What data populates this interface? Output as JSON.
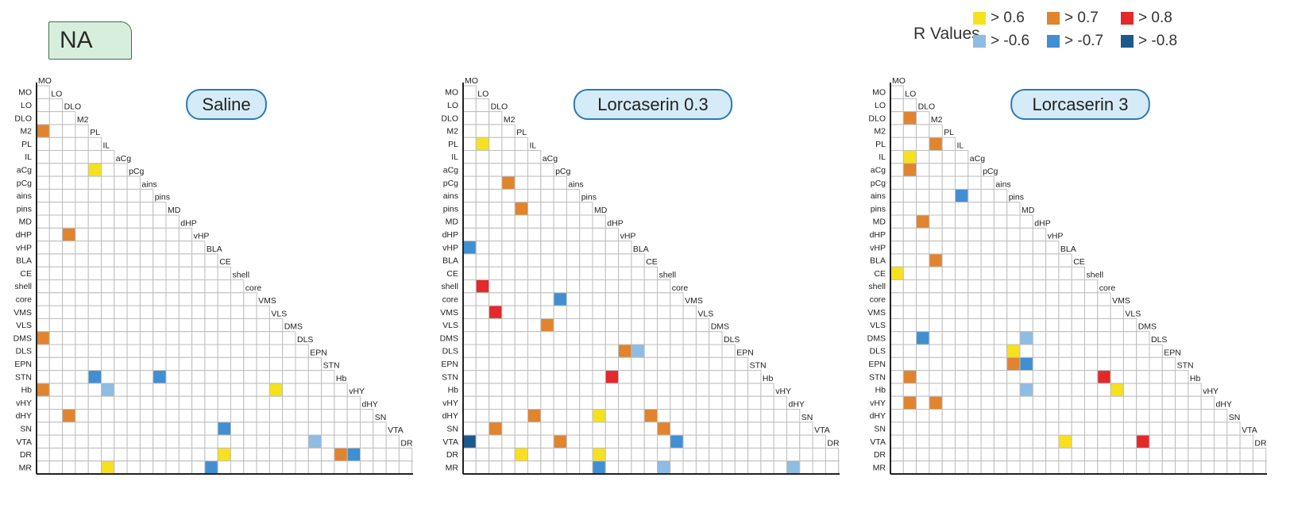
{
  "na_label": "NA",
  "legend": {
    "title": "R Values",
    "items": [
      {
        "label": "> 0.6",
        "color": "#f7e11e"
      },
      {
        "label": "> 0.7",
        "color": "#e0842e"
      },
      {
        "label": "> 0.8",
        "color": "#e4282c"
      },
      {
        "label": "> -0.6",
        "color": "#8ebce3"
      },
      {
        "label": "> -0.7",
        "color": "#3f8fd2"
      },
      {
        "label": "> -0.8",
        "color": "#1d5a8c"
      }
    ]
  },
  "chart_data": [
    {
      "type": "heatmap",
      "title": "Saline",
      "regions": [
        "MO",
        "LO",
        "DLO",
        "M2",
        "PL",
        "IL",
        "aCg",
        "pCg",
        "ains",
        "pins",
        "MD",
        "dHP",
        "vHP",
        "BLA",
        "CE",
        "shell",
        "core",
        "VMS",
        "VLS",
        "DMS",
        "DLS",
        "EPN",
        "STN",
        "Hb",
        "vHY",
        "dHY",
        "SN",
        "VTA",
        "DR",
        "MR"
      ],
      "cells": [
        {
          "row": "M2",
          "col": "MO",
          "r": 0.7
        },
        {
          "row": "aCg",
          "col": "PL",
          "r": 0.6
        },
        {
          "row": "dHP",
          "col": "DLO",
          "r": 0.7
        },
        {
          "row": "DMS",
          "col": "MO",
          "r": 0.7
        },
        {
          "row": "STN",
          "col": "PL",
          "r": -0.7
        },
        {
          "row": "STN",
          "col": "pins",
          "r": -0.7
        },
        {
          "row": "Hb",
          "col": "MO",
          "r": 0.7
        },
        {
          "row": "Hb",
          "col": "IL",
          "r": -0.6
        },
        {
          "row": "Hb",
          "col": "VLS",
          "r": 0.6
        },
        {
          "row": "dHY",
          "col": "DLO",
          "r": 0.7
        },
        {
          "row": "SN",
          "col": "CE",
          "r": -0.7
        },
        {
          "row": "VTA",
          "col": "EPN",
          "r": -0.6
        },
        {
          "row": "DR",
          "col": "CE",
          "r": 0.6
        },
        {
          "row": "DR",
          "col": "Hb",
          "r": 0.7
        },
        {
          "row": "DR",
          "col": "vHY",
          "r": -0.7
        },
        {
          "row": "MR",
          "col": "IL",
          "r": 0.6
        },
        {
          "row": "MR",
          "col": "BLA",
          "r": -0.7
        }
      ]
    },
    {
      "type": "heatmap",
      "title": "Lorcaserin 0.3",
      "regions": [
        "MO",
        "LO",
        "DLO",
        "M2",
        "PL",
        "IL",
        "aCg",
        "pCg",
        "ains",
        "pins",
        "MD",
        "dHP",
        "vHP",
        "BLA",
        "CE",
        "shell",
        "core",
        "VMS",
        "VLS",
        "DMS",
        "DLS",
        "EPN",
        "STN",
        "Hb",
        "vHY",
        "dHY",
        "SN",
        "VTA",
        "DR",
        "MR"
      ],
      "cells": [
        {
          "row": "PL",
          "col": "LO",
          "r": 0.6
        },
        {
          "row": "pCg",
          "col": "M2",
          "r": 0.7
        },
        {
          "row": "pins",
          "col": "PL",
          "r": 0.7
        },
        {
          "row": "vHP",
          "col": "MO",
          "r": -0.7
        },
        {
          "row": "shell",
          "col": "LO",
          "r": 0.8
        },
        {
          "row": "core",
          "col": "pCg",
          "r": -0.7
        },
        {
          "row": "VMS",
          "col": "DLO",
          "r": 0.8
        },
        {
          "row": "VLS",
          "col": "aCg",
          "r": 0.7
        },
        {
          "row": "DLS",
          "col": "vHP",
          "r": 0.7
        },
        {
          "row": "DLS",
          "col": "BLA",
          "r": -0.6
        },
        {
          "row": "STN",
          "col": "dHP",
          "r": 0.8
        },
        {
          "row": "dHY",
          "col": "IL",
          "r": 0.7
        },
        {
          "row": "dHY",
          "col": "MD",
          "r": 0.6
        },
        {
          "row": "dHY",
          "col": "CE",
          "r": 0.7
        },
        {
          "row": "SN",
          "col": "DLO",
          "r": 0.7
        },
        {
          "row": "SN",
          "col": "shell",
          "r": 0.7
        },
        {
          "row": "VTA",
          "col": "MO",
          "r": -0.8
        },
        {
          "row": "VTA",
          "col": "pCg",
          "r": 0.7
        },
        {
          "row": "VTA",
          "col": "core",
          "r": -0.7
        },
        {
          "row": "DR",
          "col": "PL",
          "r": 0.6
        },
        {
          "row": "DR",
          "col": "MD",
          "r": 0.6
        },
        {
          "row": "MR",
          "col": "MD",
          "r": -0.7
        },
        {
          "row": "MR",
          "col": "shell",
          "r": -0.6
        },
        {
          "row": "MR",
          "col": "dHY",
          "r": -0.6
        }
      ]
    },
    {
      "type": "heatmap",
      "title": "Lorcaserin 3",
      "regions": [
        "MO",
        "LO",
        "DLO",
        "M2",
        "PL",
        "IL",
        "aCg",
        "pCg",
        "ains",
        "pins",
        "MD",
        "dHP",
        "vHP",
        "BLA",
        "CE",
        "shell",
        "core",
        "VMS",
        "VLS",
        "DMS",
        "DLS",
        "EPN",
        "STN",
        "Hb",
        "vHY",
        "dHY",
        "SN",
        "VTA",
        "DR",
        "MR"
      ],
      "cells": [
        {
          "row": "DLO",
          "col": "LO",
          "r": 0.7
        },
        {
          "row": "PL",
          "col": "M2",
          "r": 0.7
        },
        {
          "row": "IL",
          "col": "LO",
          "r": 0.6
        },
        {
          "row": "aCg",
          "col": "LO",
          "r": 0.7
        },
        {
          "row": "ains",
          "col": "IL",
          "r": -0.7
        },
        {
          "row": "MD",
          "col": "DLO",
          "r": 0.7
        },
        {
          "row": "BLA",
          "col": "M2",
          "r": 0.7
        },
        {
          "row": "CE",
          "col": "MO",
          "r": 0.6
        },
        {
          "row": "DMS",
          "col": "DLO",
          "r": -0.7
        },
        {
          "row": "DMS",
          "col": "MD",
          "r": -0.6
        },
        {
          "row": "DLS",
          "col": "pins",
          "r": 0.6
        },
        {
          "row": "EPN",
          "col": "pins",
          "r": 0.7
        },
        {
          "row": "EPN",
          "col": "MD",
          "r": -0.7
        },
        {
          "row": "STN",
          "col": "LO",
          "r": 0.7
        },
        {
          "row": "STN",
          "col": "core",
          "r": 0.8
        },
        {
          "row": "Hb",
          "col": "MD",
          "r": -0.6
        },
        {
          "row": "Hb",
          "col": "VMS",
          "r": 0.6
        },
        {
          "row": "vHY",
          "col": "LO",
          "r": 0.7
        },
        {
          "row": "vHY",
          "col": "M2",
          "r": 0.7
        },
        {
          "row": "VTA",
          "col": "BLA",
          "r": 0.6
        },
        {
          "row": "VTA",
          "col": "DMS",
          "r": 0.8
        }
      ]
    }
  ]
}
